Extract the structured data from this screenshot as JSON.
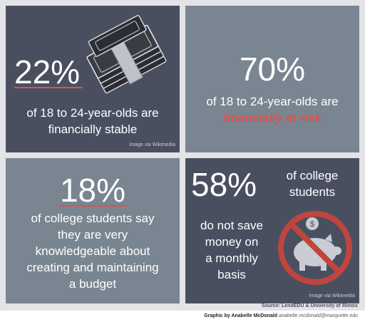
{
  "panels": {
    "p1": {
      "stat": "22%",
      "text_line1": "of 18 to 24-year-olds are",
      "text_line2": "financially stable",
      "credit": "Image via Wikimedia",
      "icon": "money-stack-icon"
    },
    "p2": {
      "stat": "70%",
      "text_line1": "of 18 to 24-year-olds are",
      "text_line2": "financially at risk"
    },
    "p3": {
      "stat": "18%",
      "text_line1": "of college students say",
      "text_line2": "they are very",
      "text_line3": "knowledgeable about",
      "text_line4": "creating and maintaining",
      "text_line5": "a budget"
    },
    "p4": {
      "stat": "58%",
      "text_line1": "of college",
      "text_line2": "students",
      "text_line3": "do not save",
      "text_line4": "money on",
      "text_line5": "a monthly",
      "text_line6": "basis",
      "credit": "Image via Wikimedia",
      "icon": "no-piggy-bank-icon"
    }
  },
  "source": "Source: LendEDU & University of Illinois",
  "footer": {
    "graphic_by": "Graphic by Anabelle McDonald",
    "email": "anabelle.mcdonald@marquette.edu"
  },
  "colors": {
    "dark_panel": "#4a4f60",
    "light_panel": "#7a8592",
    "accent": "#d9534f"
  }
}
